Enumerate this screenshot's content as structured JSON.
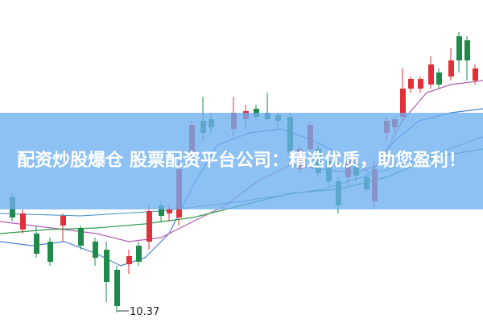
{
  "banner": {
    "title": "配资炒股爆仓 股票配资平台公司：精选优质，助您盈利！"
  },
  "annotation": {
    "label": "10.37"
  }
}
